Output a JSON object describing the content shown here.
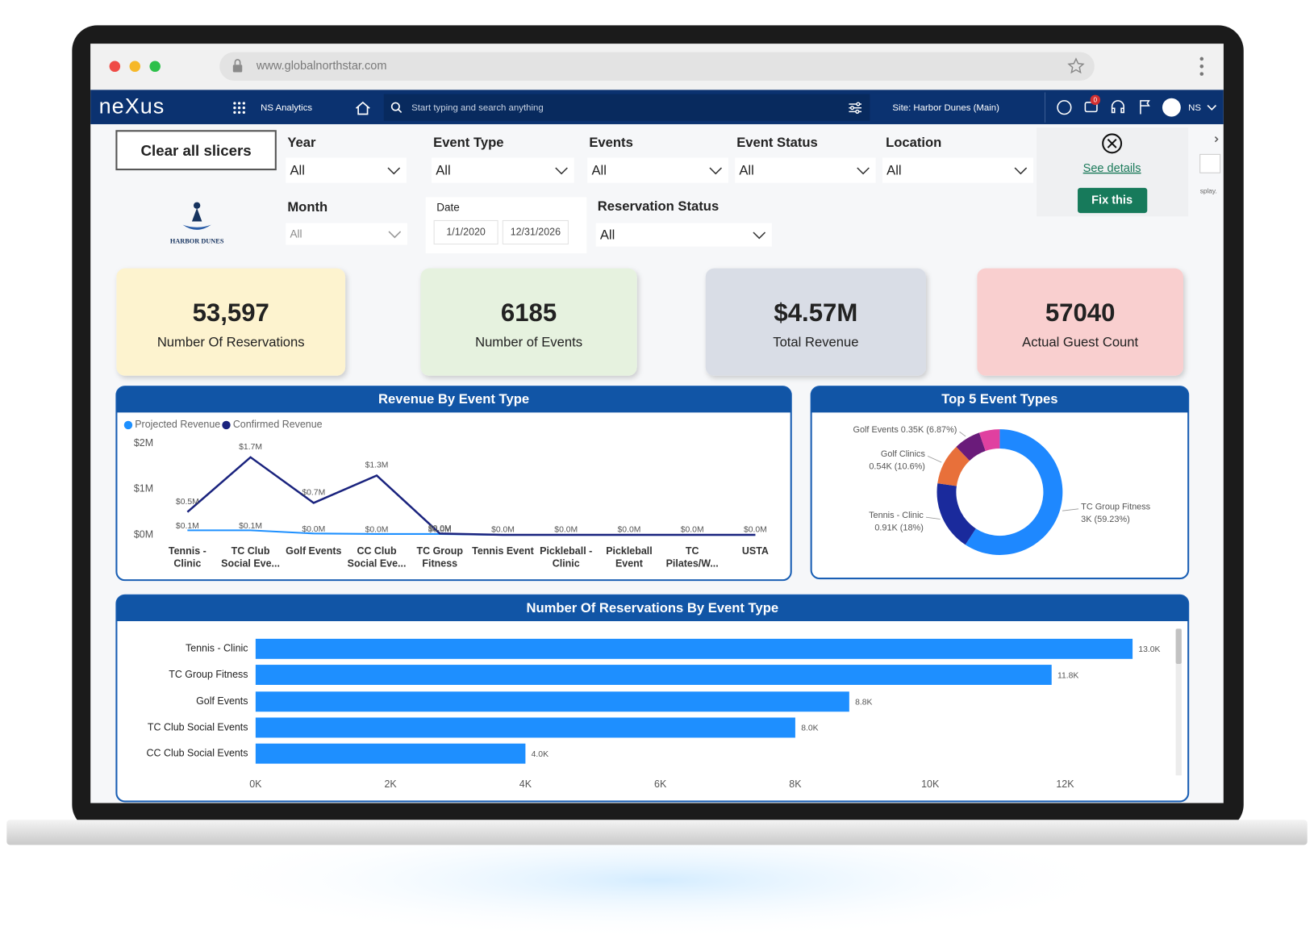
{
  "browser": {
    "url": "www.globalnorthstar.com"
  },
  "navbar": {
    "logo": "neXus",
    "app": "NS Analytics",
    "search_placeholder": "Start typing and search anything",
    "site": "Site: Harbor Dunes (Main)",
    "notifications": "0",
    "user": "NS"
  },
  "filters": {
    "clear": "Clear all slicers",
    "year": {
      "label": "Year",
      "value": "All"
    },
    "event_type": {
      "label": "Event Type",
      "value": "All"
    },
    "events": {
      "label": "Events",
      "value": "All"
    },
    "event_status": {
      "label": "Event Status",
      "value": "All"
    },
    "location": {
      "label": "Location",
      "value": "All"
    },
    "month": {
      "label": "Month",
      "value": "All"
    },
    "date": {
      "label": "Date",
      "start": "1/1/2020",
      "end": "12/31/2026"
    },
    "reservation_status": {
      "label": "Reservation Status",
      "value": "All"
    }
  },
  "brand": "HARBOR DUNES",
  "error_panel": {
    "details": "See details",
    "fix": "Fix this"
  },
  "side_text": "splay.",
  "kpis": [
    {
      "value": "53,597",
      "label": "Number Of Reservations",
      "color": "#fdf3cf"
    },
    {
      "value": "6185",
      "label": "Number of Events",
      "color": "#e6f2df"
    },
    {
      "value": "$4.57M",
      "label": "Total Revenue",
      "color": "#d9dde6"
    },
    {
      "value": "57040",
      "label": "Actual Guest Count",
      "color": "#f9cfcf"
    }
  ],
  "charts": [
    {
      "type": "line",
      "title": "Revenue By Event Type",
      "categories": [
        "Tennis - Clinic",
        "TC Club Social Eve...",
        "Golf Events",
        "CC Club Social Eve...",
        "TC Group Fitness",
        "Tennis Event",
        "Pickleball - Clinic",
        "Pickleball Event",
        "TC Pilates/W...",
        "USTA"
      ],
      "series": [
        {
          "name": "Projected Revenue",
          "color": "#1e90ff",
          "values": [
            0.1,
            0.1,
            0.03,
            0.02,
            0.02,
            0,
            0,
            0,
            0,
            0
          ],
          "value_labels": [
            "$0.1M",
            "$0.1M",
            "$0.0M",
            "$0.0M",
            "$0.0M",
            null,
            null,
            null,
            null,
            null
          ]
        },
        {
          "name": "Confirmed Revenue",
          "color": "#1a237e",
          "values": [
            0.5,
            1.7,
            0.7,
            1.3,
            0.03,
            0,
            0,
            0,
            0,
            0
          ],
          "value_labels": [
            "$0.5M",
            "$1.7M",
            "$0.7M",
            "$1.3M",
            "$0.0M",
            "$0.0M",
            "$0.0M",
            "$0.0M",
            "$0.0M",
            "$0.0M"
          ]
        }
      ],
      "ylim": [
        0,
        2
      ],
      "yticks": [
        {
          "value": 0,
          "label": "$0M"
        },
        {
          "value": 1,
          "label": "$1M"
        },
        {
          "value": 2,
          "label": "$2M"
        }
      ],
      "legend": "top-left"
    },
    {
      "type": "pie",
      "title": "Top 5 Event Types",
      "categories": [
        "TC Group Fitness",
        "Tennis - Clinic",
        "Golf Clinics",
        "Golf Events",
        null
      ],
      "values": [
        59.23,
        18,
        10.6,
        6.87,
        5.3
      ],
      "value_labels": [
        "3K (59.23%)",
        "0.91K (18%)",
        "0.54K (10.6%)",
        "0.35K (6.87%)",
        null
      ],
      "colors": [
        "#1e88ff",
        "#1a2a9c",
        "#e8703a",
        "#6a1b7a",
        "#e040a0"
      ],
      "donut": true
    },
    {
      "type": "hbar",
      "title": "Number Of Reservations By Event Type",
      "categories": [
        "Tennis - Clinic",
        "TC Group Fitness",
        "Golf Events",
        "TC Club Social Events",
        "CC Club Social Events"
      ],
      "values": [
        13.0,
        11.8,
        8.8,
        8.0,
        4.0
      ],
      "value_labels": [
        "13.0K",
        "11.8K",
        "8.8K",
        "8.0K",
        "4.0K"
      ],
      "color": "#1e8fff",
      "xlim": [
        0,
        13.5
      ],
      "xticks": [
        {
          "value": 0,
          "label": "0K"
        },
        {
          "value": 2,
          "label": "2K"
        },
        {
          "value": 4,
          "label": "4K"
        },
        {
          "value": 6,
          "label": "6K"
        },
        {
          "value": 8,
          "label": "8K"
        },
        {
          "value": 10,
          "label": "10K"
        },
        {
          "value": 12,
          "label": "12K"
        }
      ]
    }
  ]
}
